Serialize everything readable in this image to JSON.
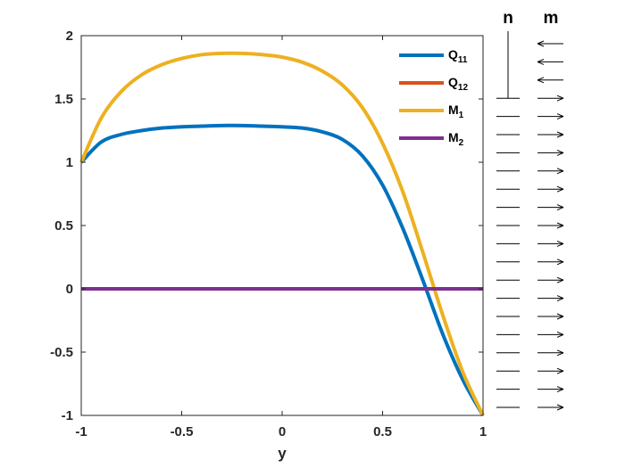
{
  "chart_data": {
    "type": "line",
    "title": "",
    "xlabel": "y",
    "ylabel": "",
    "xlim": [
      -1,
      1
    ],
    "ylim": [
      -1,
      2
    ],
    "xticks": [
      "-1",
      "-0.5",
      "0",
      "0.5",
      "1"
    ],
    "yticks": [
      "-1",
      "-0.5",
      "0",
      "0.5",
      "1",
      "1.5",
      "2"
    ],
    "xtick_values": [
      -1,
      -0.5,
      0,
      0.5,
      1
    ],
    "ytick_values": [
      -1,
      -0.5,
      0,
      0.5,
      1,
      1.5,
      2
    ],
    "grid": false,
    "legend_position": "top-right",
    "x": [
      -1,
      -0.9,
      -0.8,
      -0.7,
      -0.6,
      -0.5,
      -0.4,
      -0.3,
      -0.2,
      -0.1,
      0,
      0.1,
      0.2,
      0.3,
      0.4,
      0.5,
      0.6,
      0.7,
      0.8,
      0.9,
      1
    ],
    "series": [
      {
        "name": "Q",
        "sub": "11",
        "color": "#0072BD",
        "values": [
          1.0,
          1.16,
          1.22,
          1.25,
          1.27,
          1.28,
          1.285,
          1.29,
          1.29,
          1.285,
          1.28,
          1.27,
          1.24,
          1.18,
          1.05,
          0.82,
          0.48,
          0.07,
          -0.36,
          -0.72,
          -1.0
        ]
      },
      {
        "name": "Q",
        "sub": "12",
        "color": "#D95319",
        "values": [
          0,
          0,
          0,
          0,
          0,
          0,
          0,
          0,
          0,
          0,
          0,
          0,
          0,
          0,
          0,
          0,
          0,
          0,
          0,
          0,
          0
        ]
      },
      {
        "name": "M",
        "sub": "1",
        "color": "#EDB120",
        "values": [
          1.0,
          1.35,
          1.56,
          1.69,
          1.77,
          1.82,
          1.85,
          1.86,
          1.86,
          1.85,
          1.83,
          1.79,
          1.72,
          1.61,
          1.43,
          1.15,
          0.77,
          0.29,
          -0.21,
          -0.66,
          -1.0
        ]
      },
      {
        "name": "M",
        "sub": "2",
        "color": "#7E2F8E",
        "values": [
          0,
          0,
          0,
          0,
          0,
          0,
          0,
          0,
          0,
          0,
          0,
          0,
          0,
          0,
          0,
          0,
          0,
          0,
          0,
          0,
          0
        ]
      }
    ]
  },
  "side_panel": {
    "n_label": "n",
    "m_label": "m",
    "n_stem_rows": 4,
    "rows": 21,
    "m_left_rows": 3
  }
}
